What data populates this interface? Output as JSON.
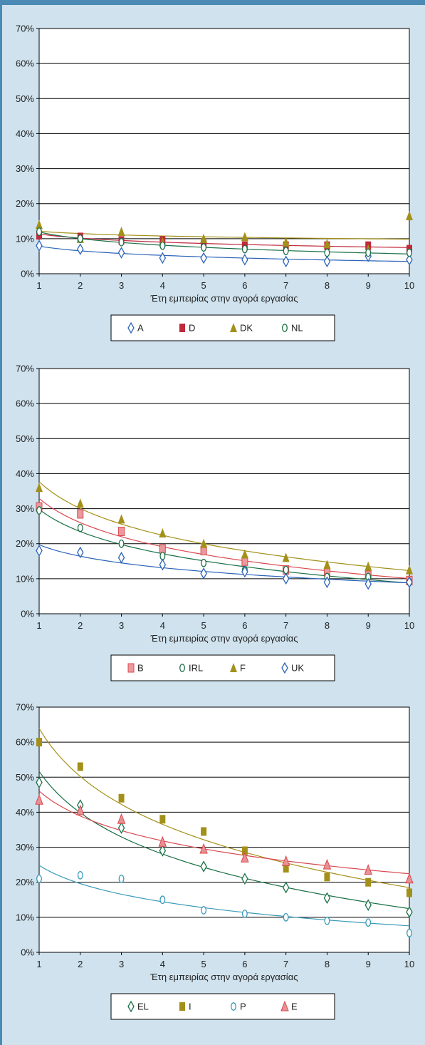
{
  "colors": {
    "page_background": "#cfe2ee",
    "accent": "#4a8ab5",
    "plot_background": "#ffffff",
    "gridline": "#000000"
  },
  "chart_data": [
    {
      "type": "scatter",
      "title": "",
      "xlabel": "Έτη εμπειρίας στην αγορά εργασίας",
      "ylabel": "",
      "x": [
        1,
        2,
        3,
        4,
        5,
        6,
        7,
        8,
        9,
        10
      ],
      "xlim": [
        1,
        10
      ],
      "ylim": [
        0,
        70
      ],
      "yticks": [
        "0%",
        "10%",
        "20%",
        "30%",
        "40%",
        "50%",
        "60%",
        "70%"
      ],
      "xticks": [
        "1",
        "2",
        "3",
        "4",
        "5",
        "6",
        "7",
        "8",
        "9",
        "10"
      ],
      "grid": true,
      "legend_position": "bottom",
      "trendlines": "logarithmic",
      "series": [
        {
          "name": "A",
          "marker": "diamond-open",
          "color": "#2b63b8",
          "values": [
            8,
            7,
            6,
            4.5,
            4.5,
            4,
            3.5,
            3.5,
            5,
            4
          ]
        },
        {
          "name": "D",
          "marker": "square",
          "color": "#c0283c",
          "values": [
            11,
            10.5,
            9.5,
            9.5,
            8.5,
            8,
            8,
            8,
            8,
            7
          ]
        },
        {
          "name": "DK",
          "marker": "triangle",
          "color": "#a39019",
          "values": [
            14,
            10,
            12,
            9,
            10,
            10.5,
            9,
            8.5,
            7,
            16.5
          ]
        },
        {
          "name": "NL",
          "marker": "ellipse-open",
          "color": "#1a7046",
          "values": [
            12,
            10,
            9,
            8,
            7.5,
            7,
            6.5,
            6,
            6,
            6
          ]
        }
      ]
    },
    {
      "type": "scatter",
      "title": "",
      "xlabel": "Έτη εμπειρίας στην αγορά εργασίας",
      "ylabel": "",
      "x": [
        1,
        2,
        3,
        4,
        5,
        6,
        7,
        8,
        9,
        10
      ],
      "xlim": [
        1,
        10
      ],
      "ylim": [
        0,
        70
      ],
      "yticks": [
        "0%",
        "10%",
        "20%",
        "30%",
        "40%",
        "50%",
        "60%",
        "70%"
      ],
      "xticks": [
        "1",
        "2",
        "3",
        "4",
        "5",
        "6",
        "7",
        "8",
        "9",
        "10"
      ],
      "grid": true,
      "legend_position": "bottom",
      "trendlines": "logarithmic",
      "series": [
        {
          "name": "B",
          "marker": "square-light",
          "color": "#d9484e",
          "values": [
            30.5,
            28.5,
            23.5,
            18.5,
            18,
            15,
            12.5,
            12,
            11,
            9.5
          ]
        },
        {
          "name": "IRL",
          "marker": "ellipse-open",
          "color": "#1a7046",
          "values": [
            29.5,
            24.5,
            20,
            16.5,
            14.5,
            12.5,
            12.5,
            10.5,
            10.5,
            9
          ]
        },
        {
          "name": "F",
          "marker": "triangle",
          "color": "#a39019",
          "values": [
            36,
            31.5,
            27,
            23,
            20,
            17,
            16,
            14,
            13.5,
            12.5
          ]
        },
        {
          "name": "UK",
          "marker": "diamond-open",
          "color": "#2b63b8",
          "values": [
            18,
            17.5,
            16,
            14,
            11.5,
            12,
            10,
            9,
            8.5,
            9
          ]
        }
      ]
    },
    {
      "type": "scatter",
      "title": "",
      "xlabel": "Έτη εμπειρίας στην αγορά εργασίας",
      "ylabel": "",
      "x": [
        1,
        2,
        3,
        4,
        5,
        6,
        7,
        8,
        9,
        10
      ],
      "xlim": [
        1,
        10
      ],
      "ylim": [
        0,
        70
      ],
      "yticks": [
        "0%",
        "10%",
        "20%",
        "30%",
        "40%",
        "50%",
        "60%",
        "70%"
      ],
      "xticks": [
        "1",
        "2",
        "3",
        "4",
        "5",
        "6",
        "7",
        "8",
        "9",
        "10"
      ],
      "grid": true,
      "legend_position": "bottom",
      "trendlines": "logarithmic",
      "series": [
        {
          "name": "EL",
          "marker": "diamond-open",
          "color": "#1a7046",
          "values": [
            48.5,
            42,
            35.5,
            29,
            24.5,
            21,
            18.5,
            15.5,
            13.5,
            11.5
          ]
        },
        {
          "name": "I",
          "marker": "square",
          "color": "#a39019",
          "values": [
            60,
            53,
            44,
            38,
            34.5,
            29,
            24,
            21.5,
            20,
            17
          ]
        },
        {
          "name": "P",
          "marker": "ellipse-open",
          "color": "#3a9ab8",
          "values": [
            21,
            22,
            21,
            15,
            12,
            11,
            10,
            9,
            8.5,
            5.5
          ]
        },
        {
          "name": "E",
          "marker": "triangle-light",
          "color": "#d9484e",
          "values": [
            43.5,
            40.5,
            38,
            31.5,
            29.5,
            27,
            26,
            25,
            23.5,
            21
          ]
        }
      ]
    }
  ]
}
